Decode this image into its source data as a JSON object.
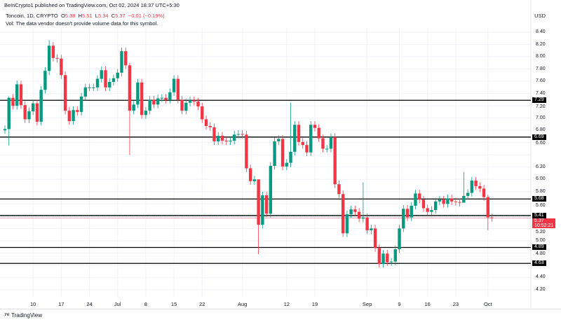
{
  "header": {
    "publisher": "BeInCrypto1 published on TradingView.com, Oct 02, 2024 18:37 UTC+5:30"
  },
  "legend": {
    "symbol": "Toncoin, 1D, CRYPTO",
    "o_label": "O",
    "o": "5.38",
    "h_label": "H",
    "h": "5.51",
    "l_label": "L",
    "l": "5.34",
    "c_label": "C",
    "c": "5.37",
    "change": "−0.01 (−0.19%)",
    "vol": "Vol: The data vendor doesn't provide volume data for this symbol."
  },
  "currency": "USD",
  "colors": {
    "up": "#089981",
    "down": "#f23645",
    "level": "#000000"
  },
  "x_labels": [
    {
      "t": "10",
      "d": 7
    },
    {
      "t": "17",
      "d": 14
    },
    {
      "t": "24",
      "d": 21
    },
    {
      "t": "Jul",
      "d": 28
    },
    {
      "t": "8",
      "d": 35
    },
    {
      "t": "15",
      "d": 42
    },
    {
      "t": "22",
      "d": 49
    },
    {
      "t": "Aug",
      "d": 59
    },
    {
      "t": "12",
      "d": 70
    },
    {
      "t": "19",
      "d": 77
    },
    {
      "t": "Sep",
      "d": 90
    },
    {
      "t": "9",
      "d": 98
    },
    {
      "t": "16",
      "d": 105
    },
    {
      "t": "23",
      "d": 112
    },
    {
      "t": "Oct",
      "d": 120
    }
  ],
  "y_labels": [
    "8.40",
    "8.20",
    "8.00",
    "7.80",
    "7.60",
    "7.40",
    "7.20",
    "7.00",
    "6.80",
    "6.60",
    "6.20",
    "6.00",
    "5.80",
    "5.60",
    "5.20",
    "5.00",
    "4.80",
    "4.40",
    "4.20"
  ],
  "levels": [
    "7.29",
    "6.69",
    "5.68",
    "5.41",
    "4.89",
    "4.63"
  ],
  "current": {
    "price": "5.37",
    "countdown": "10:52:21"
  },
  "chart_data": {
    "type": "candlestick",
    "ylim": [
      4.1,
      8.5
    ],
    "first_open": 6.8,
    "closes": [
      6.82,
      7.33,
      7.2,
      7.55,
      7.21,
      6.98,
      7.11,
      7.24,
      6.94,
      7.46,
      7.77,
      8.18,
      7.98,
      7.97,
      7.7,
      7.12,
      6.95,
      7.13,
      7.1,
      7.35,
      7.5,
      7.5,
      7.5,
      7.64,
      7.78,
      7.5,
      7.59,
      7.65,
      7.74,
      8.09,
      7.86,
      7.12,
      7.22,
      7.58,
      7.05,
      7.12,
      7.3,
      7.22,
      7.32,
      7.33,
      7.3,
      7.42,
      7.64,
      7.3,
      7.12,
      7.25,
      7.29,
      7.27,
      7.19,
      6.98,
      6.87,
      6.85,
      6.62,
      6.71,
      6.63,
      6.62,
      6.63,
      6.73,
      6.74,
      6.73,
      6.18,
      5.97,
      6.0,
      5.26,
      5.74,
      5.44,
      6.22,
      6.62,
      6.66,
      6.21,
      6.27,
      6.45,
      6.89,
      6.61,
      6.56,
      6.44,
      6.89,
      6.84,
      6.67,
      6.5,
      6.5,
      6.69,
      5.92,
      5.76,
      5.12,
      5.43,
      5.51,
      5.47,
      5.36,
      5.38,
      5.17,
      5.2,
      4.88,
      4.62,
      4.79,
      4.65,
      4.66,
      4.86,
      5.2,
      5.52,
      5.38,
      5.57,
      5.77,
      5.67,
      5.53,
      5.47,
      5.5,
      5.64,
      5.67,
      5.6,
      5.69,
      5.64,
      5.63,
      5.62,
      5.73,
      5.78,
      5.98,
      5.89,
      5.85,
      5.71,
      5.38,
      5.37
    ],
    "wick_overrides": {
      "1": [
        7.35,
        6.55
      ],
      "11": [
        8.27,
        7.7
      ],
      "31": [
        7.9,
        6.4
      ],
      "63": [
        5.75,
        4.78
      ],
      "71": [
        7.25,
        6.2
      ],
      "89": [
        5.95,
        5.3
      ],
      "114": [
        6.12,
        5.7
      ],
      "120": [
        5.75,
        5.17
      ]
    }
  }
}
